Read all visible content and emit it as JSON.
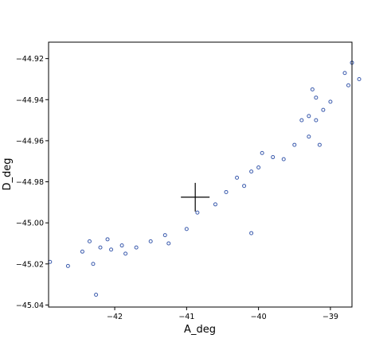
{
  "chart_data": {
    "type": "scatter",
    "title": "",
    "xlabel": "A_deg",
    "ylabel": "D_deg",
    "xlim": [
      -42.92,
      -38.7
    ],
    "ylim": [
      -45.041,
      -44.912
    ],
    "xticks": [
      -42,
      -41,
      -40,
      -39
    ],
    "xtick_labels": [
      "−42",
      "−41",
      "−40",
      "−39"
    ],
    "yticks": [
      -45.04,
      -45.02,
      -45.0,
      -44.98,
      -44.96,
      -44.94,
      -44.92
    ],
    "ytick_labels": [
      "−45.04",
      "−45.02",
      "−45.00",
      "−44.98",
      "−44.96",
      "−44.94",
      "−44.92"
    ],
    "grid": false,
    "legend": "none",
    "marker": "hollow-circle",
    "marker_color": "#3b5bad",
    "center_marker": {
      "shape": "plus",
      "x": -40.88,
      "y": -44.9875,
      "color": "#000000"
    },
    "points": [
      [
        -42.9,
        -45.019
      ],
      [
        -42.65,
        -45.021
      ],
      [
        -42.45,
        -45.014
      ],
      [
        -42.3,
        -45.02
      ],
      [
        -42.26,
        -45.035
      ],
      [
        -42.35,
        -45.009
      ],
      [
        -42.2,
        -45.012
      ],
      [
        -42.1,
        -45.008
      ],
      [
        -42.05,
        -45.013
      ],
      [
        -41.9,
        -45.011
      ],
      [
        -41.85,
        -45.015
      ],
      [
        -41.7,
        -45.012
      ],
      [
        -41.5,
        -45.009
      ],
      [
        -41.3,
        -45.006
      ],
      [
        -41.25,
        -45.01
      ],
      [
        -41.0,
        -45.003
      ],
      [
        -40.85,
        -44.995
      ],
      [
        -40.6,
        -44.991
      ],
      [
        -40.45,
        -44.985
      ],
      [
        -40.3,
        -44.978
      ],
      [
        -40.1,
        -45.005
      ],
      [
        -40.2,
        -44.982
      ],
      [
        -40.1,
        -44.975
      ],
      [
        -40.0,
        -44.973
      ],
      [
        -39.95,
        -44.966
      ],
      [
        -39.8,
        -44.968
      ],
      [
        -39.65,
        -44.969
      ],
      [
        -39.5,
        -44.962
      ],
      [
        -39.3,
        -44.958
      ],
      [
        -39.15,
        -44.962
      ],
      [
        -39.1,
        -44.945
      ],
      [
        -39.2,
        -44.95
      ],
      [
        -39.3,
        -44.948
      ],
      [
        -39.4,
        -44.95
      ],
      [
        -39.25,
        -44.935
      ],
      [
        -39.2,
        -44.939
      ],
      [
        -39.0,
        -44.941
      ],
      [
        -38.8,
        -44.927
      ],
      [
        -38.6,
        -44.93
      ],
      [
        -38.75,
        -44.933
      ],
      [
        -38.7,
        -44.922
      ]
    ]
  }
}
